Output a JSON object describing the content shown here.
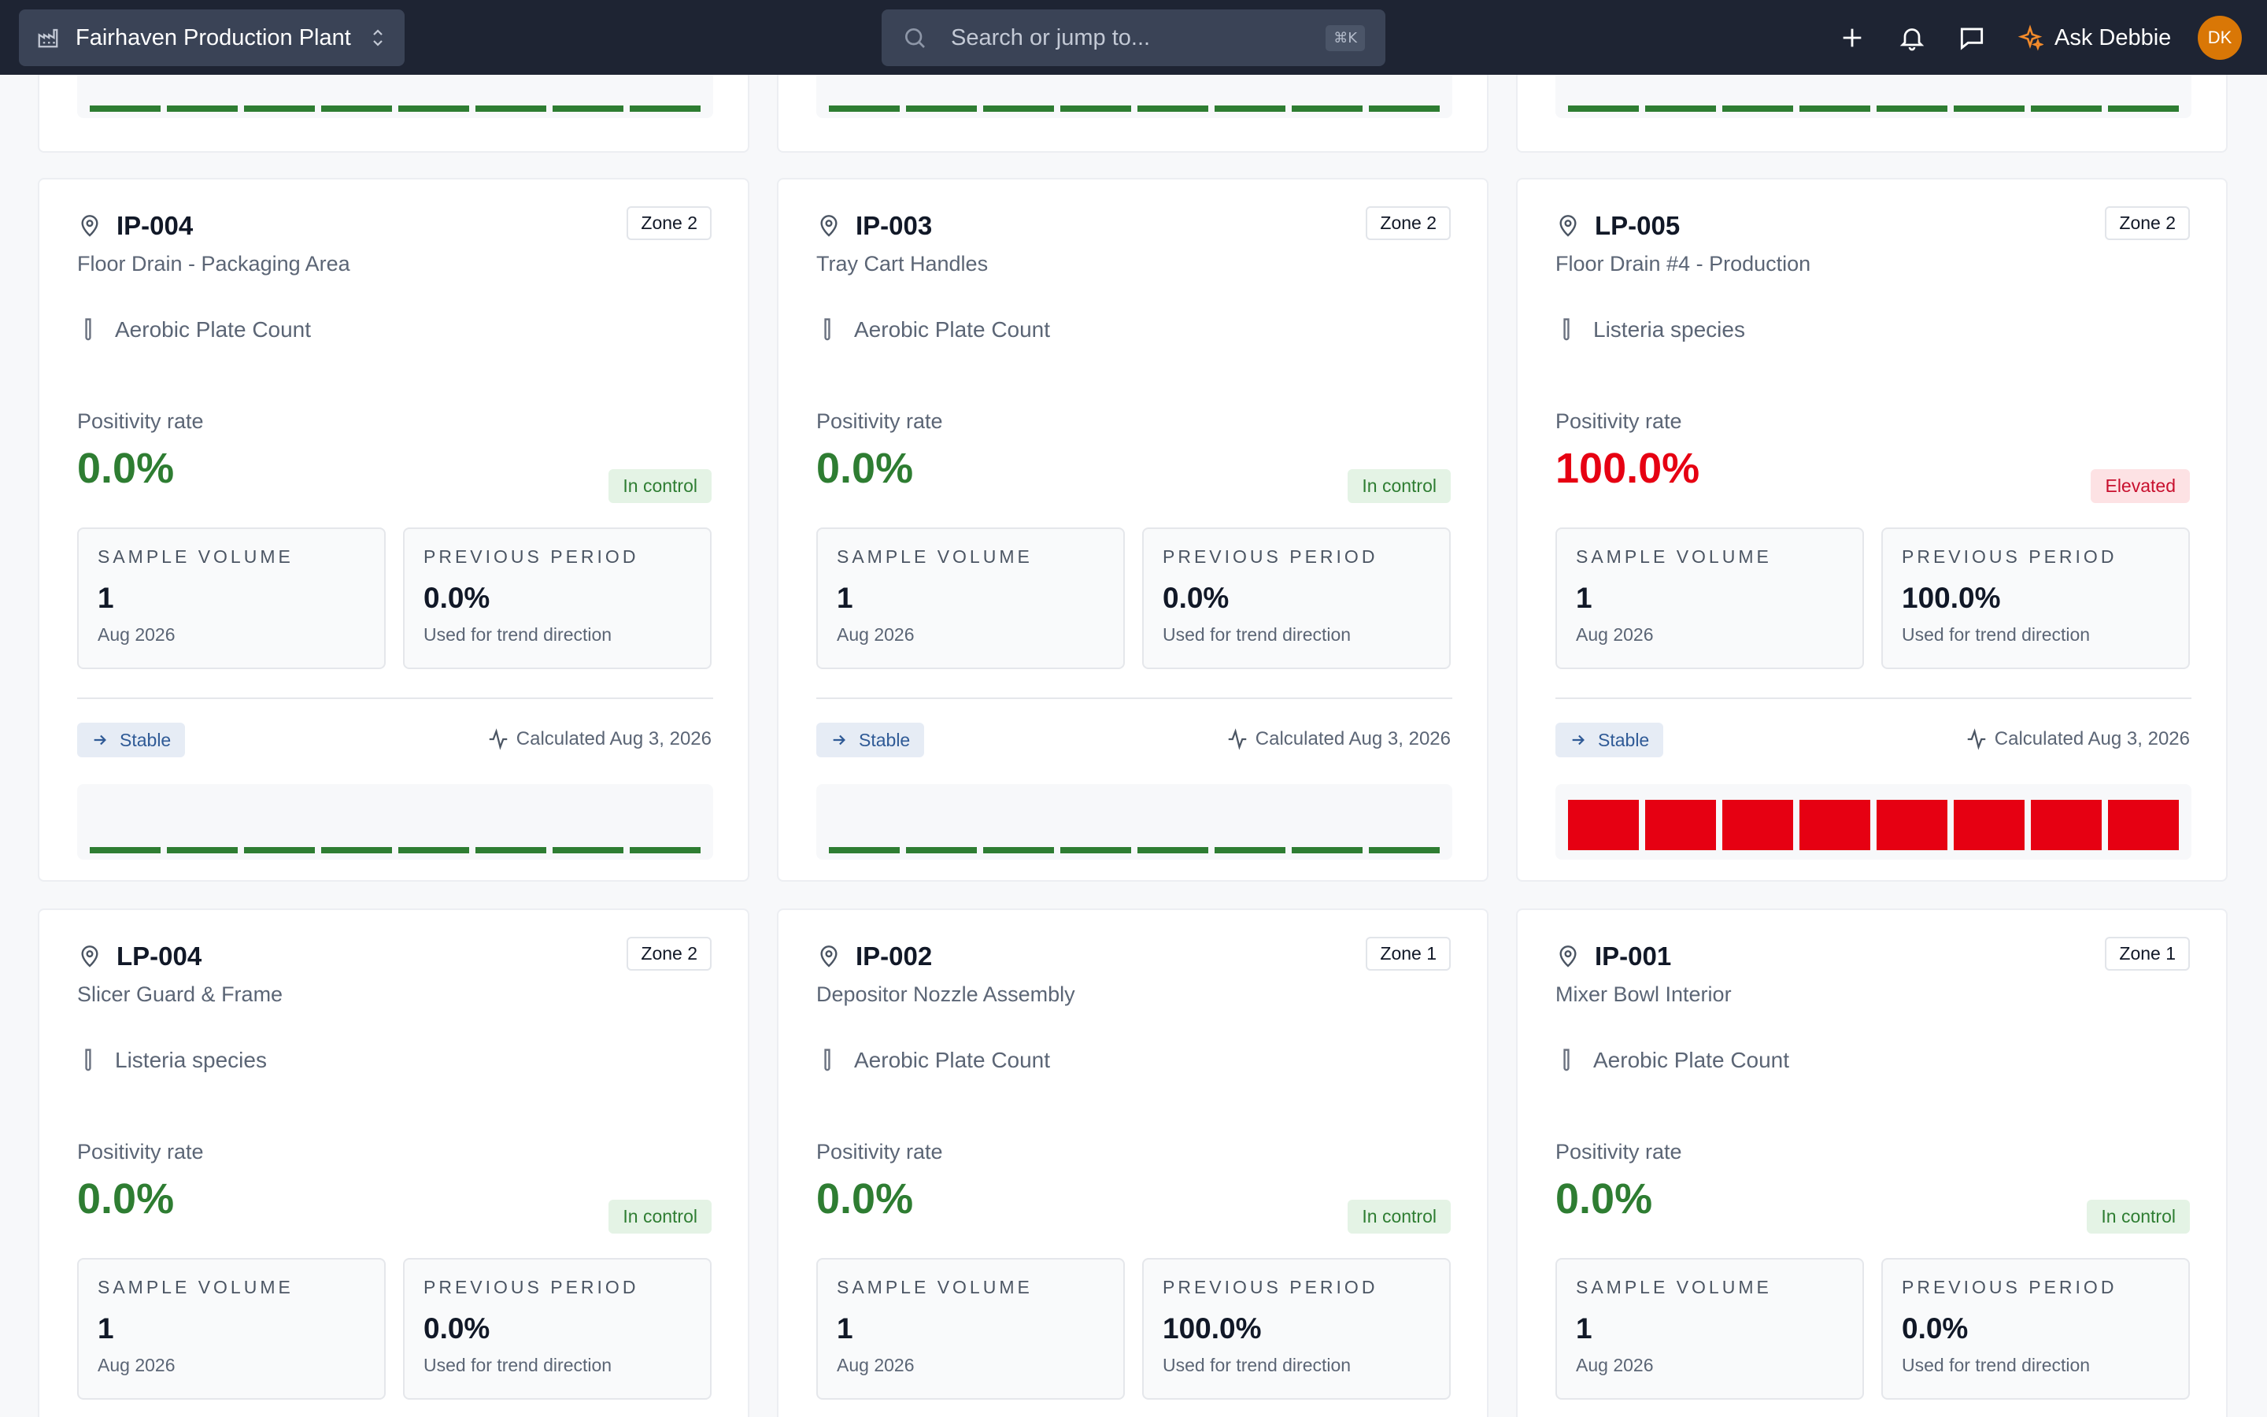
{
  "header": {
    "site_name": "Fairhaven Production Plant",
    "search_placeholder": "Search or jump to...",
    "search_shortcut": "⌘K",
    "ask_label": "Ask Debbie",
    "avatar_initials": "DK"
  },
  "common": {
    "positivity_label": "Positivity rate",
    "sample_volume_label": "SAMPLE VOLUME",
    "previous_period_label": "PREVIOUS PERIOD",
    "previous_period_sub": "Used for trend direction"
  },
  "cards": [
    {
      "code": "IP-004",
      "zone": "Zone 2",
      "name": "Floor Drain - Packaging Area",
      "test": "Aerobic Plate Count",
      "positivity": "0.0%",
      "status": "In control",
      "sample_volume": "1",
      "sample_period": "Aug 2026",
      "previous": "0.0%",
      "trend": "Stable",
      "calculated": "Calculated Aug 3, 2026",
      "history": [
        0,
        0,
        0,
        0,
        0,
        0,
        0,
        0
      ]
    },
    {
      "code": "IP-003",
      "zone": "Zone 2",
      "name": "Tray Cart Handles",
      "test": "Aerobic Plate Count",
      "positivity": "0.0%",
      "status": "In control",
      "sample_volume": "1",
      "sample_period": "Aug 2026",
      "previous": "0.0%",
      "trend": "Stable",
      "calculated": "Calculated Aug 3, 2026",
      "history": [
        0,
        0,
        0,
        0,
        0,
        0,
        0,
        0
      ]
    },
    {
      "code": "LP-005",
      "zone": "Zone 2",
      "name": "Floor Drain #4 - Production",
      "test": "Listeria species",
      "positivity": "100.0%",
      "status": "Elevated",
      "sample_volume": "1",
      "sample_period": "Aug 2026",
      "previous": "100.0%",
      "trend": "Stable",
      "calculated": "Calculated Aug 3, 2026",
      "history": [
        1,
        1,
        1,
        1,
        1,
        1,
        1,
        1
      ]
    },
    {
      "code": "LP-004",
      "zone": "Zone 2",
      "name": "Slicer Guard & Frame",
      "test": "Listeria species",
      "positivity": "0.0%",
      "status": "In control",
      "sample_volume": "1",
      "sample_period": "Aug 2026",
      "previous": "0.0%"
    },
    {
      "code": "IP-002",
      "zone": "Zone 1",
      "name": "Depositor Nozzle Assembly",
      "test": "Aerobic Plate Count",
      "positivity": "0.0%",
      "status": "In control",
      "sample_volume": "1",
      "sample_period": "Aug 2026",
      "previous": "100.0%"
    },
    {
      "code": "IP-001",
      "zone": "Zone 1",
      "name": "Mixer Bowl Interior",
      "test": "Aerobic Plate Count",
      "positivity": "0.0%",
      "status": "In control",
      "sample_volume": "1",
      "sample_period": "Aug 2026",
      "previous": "0.0%"
    }
  ],
  "colors": {
    "ok": "#2e7d32",
    "bad": "#e60012",
    "topbar": "#1e2433"
  }
}
